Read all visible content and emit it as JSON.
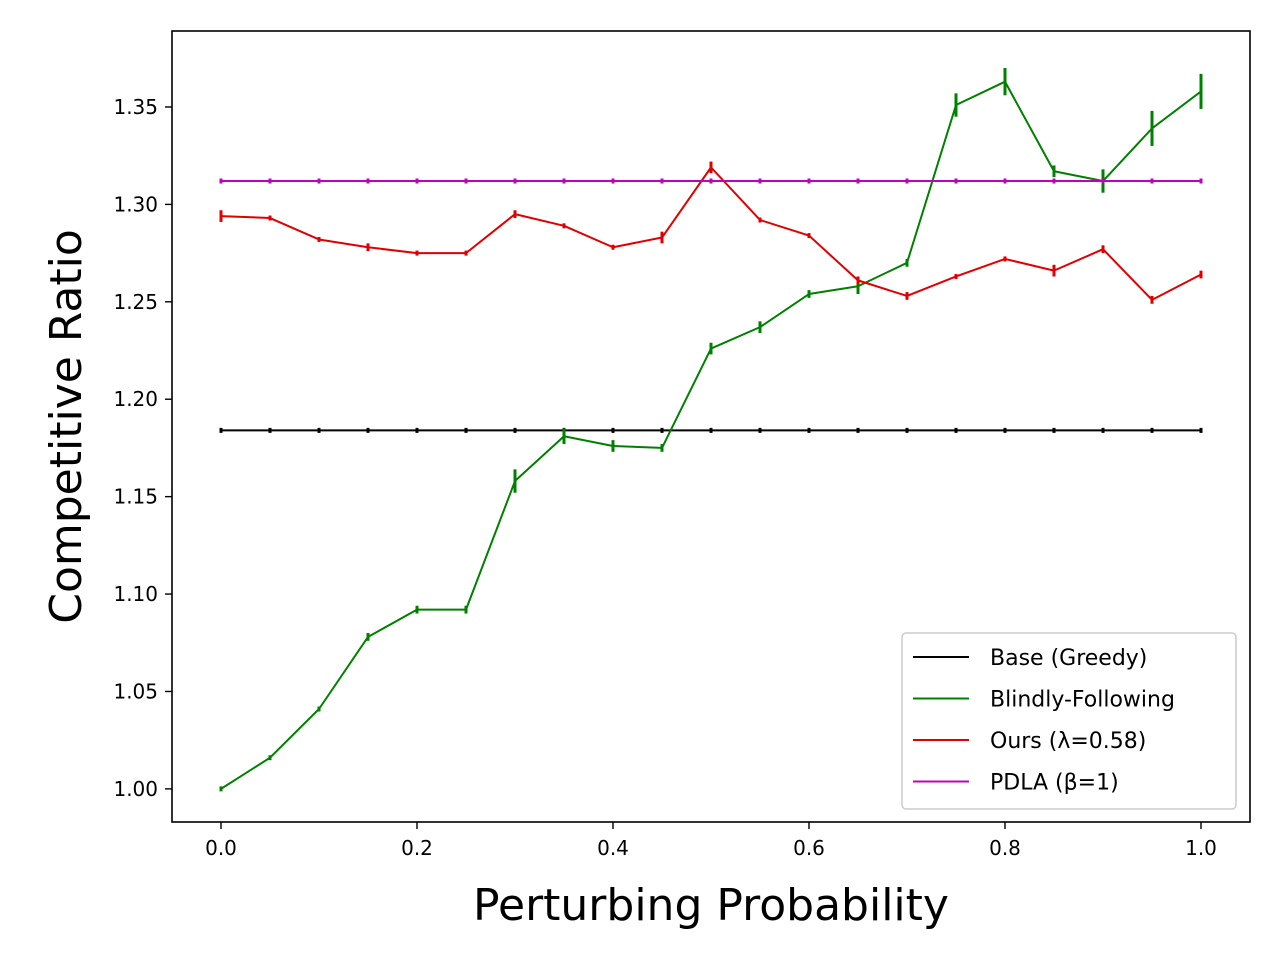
{
  "chart_data": {
    "type": "line",
    "xlabel": "Perturbing Probability",
    "ylabel": "Competitive Ratio",
    "xlim": [
      -0.05,
      1.05
    ],
    "ylim": [
      0.983,
      1.389
    ],
    "xticks": [
      0.0,
      0.2,
      0.4,
      0.6,
      0.8,
      1.0
    ],
    "xtick_labels": [
      "0.0",
      "0.2",
      "0.4",
      "0.6",
      "0.8",
      "1.0"
    ],
    "yticks": [
      1.0,
      1.05,
      1.1,
      1.15,
      1.2,
      1.25,
      1.3,
      1.35
    ],
    "ytick_labels": [
      "1.00",
      "1.05",
      "1.10",
      "1.15",
      "1.20",
      "1.25",
      "1.30",
      "1.35"
    ],
    "grid": false,
    "legend_position": "bottom-right",
    "x": [
      0.0,
      0.05,
      0.1,
      0.15,
      0.2,
      0.25,
      0.3,
      0.35,
      0.4,
      0.45,
      0.5,
      0.55,
      0.6,
      0.65,
      0.7,
      0.75,
      0.8,
      0.85,
      0.9,
      0.95,
      1.0
    ],
    "series": [
      {
        "name": "Base (Greedy)",
        "color": "#000000",
        "values": [
          1.184,
          1.184,
          1.184,
          1.184,
          1.184,
          1.184,
          1.184,
          1.184,
          1.184,
          1.184,
          1.184,
          1.184,
          1.184,
          1.184,
          1.184,
          1.184,
          1.184,
          1.184,
          1.184,
          1.184,
          1.184
        ],
        "errors": [
          0.001,
          0.001,
          0.001,
          0.001,
          0.001,
          0.001,
          0.001,
          0.001,
          0.001,
          0.001,
          0.001,
          0.001,
          0.001,
          0.001,
          0.001,
          0.001,
          0.001,
          0.001,
          0.001,
          0.001,
          0.001
        ]
      },
      {
        "name": "Blindly-Following",
        "color": "#008000",
        "values": [
          1.0,
          1.016,
          1.041,
          1.078,
          1.092,
          1.092,
          1.158,
          1.181,
          1.176,
          1.175,
          1.226,
          1.237,
          1.254,
          1.258,
          1.27,
          1.351,
          1.363,
          1.317,
          1.312,
          1.339,
          1.358
        ],
        "errors": [
          0.0005,
          0.001,
          0.001,
          0.002,
          0.002,
          0.002,
          0.006,
          0.004,
          0.003,
          0.002,
          0.003,
          0.003,
          0.002,
          0.004,
          0.002,
          0.006,
          0.007,
          0.003,
          0.006,
          0.009,
          0.009
        ]
      },
      {
        "name": "Ours (λ=0.58)",
        "color": "#e00000",
        "values": [
          1.294,
          1.293,
          1.282,
          1.278,
          1.275,
          1.275,
          1.295,
          1.289,
          1.278,
          1.283,
          1.319,
          1.292,
          1.284,
          1.261,
          1.253,
          1.263,
          1.272,
          1.266,
          1.277,
          1.251,
          1.264
        ],
        "errors": [
          0.003,
          0.001,
          0.001,
          0.002,
          0.001,
          0.001,
          0.002,
          0.001,
          0.001,
          0.003,
          0.003,
          0.001,
          0.001,
          0.002,
          0.002,
          0.001,
          0.001,
          0.003,
          0.002,
          0.002,
          0.002
        ]
      },
      {
        "name": "PDLA (β=1)",
        "color": "#bf00bf",
        "values": [
          1.312,
          1.312,
          1.312,
          1.312,
          1.312,
          1.312,
          1.312,
          1.312,
          1.312,
          1.312,
          1.312,
          1.312,
          1.312,
          1.312,
          1.312,
          1.312,
          1.312,
          1.312,
          1.312,
          1.312,
          1.312
        ],
        "errors": [
          0.0005,
          0.0005,
          0.0005,
          0.0005,
          0.0005,
          0.0005,
          0.0005,
          0.0005,
          0.0005,
          0.0005,
          0.0005,
          0.0005,
          0.0005,
          0.0005,
          0.0005,
          0.0005,
          0.0005,
          0.0005,
          0.0005,
          0.0005,
          0.0005
        ]
      }
    ]
  }
}
